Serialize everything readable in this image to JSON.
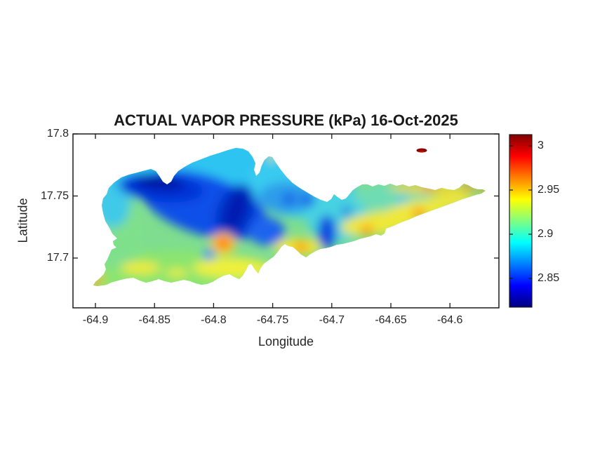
{
  "figure": {
    "title": "ACTUAL VAPOR PRESSURE (kPa) 16-Oct-2025",
    "xlabel": "Longitude",
    "ylabel": "Latitude",
    "background": "#ffffff"
  },
  "chart_data": {
    "type": "heatmap",
    "subtype": "filled-contour island map with colorbar (MATLAB style)",
    "title": "ACTUAL VAPOR PRESSURE (kPa) 16-Oct-2025",
    "xlabel": "Longitude",
    "ylabel": "Latitude",
    "x_tick_values": [
      -64.9,
      -64.85,
      -64.8,
      -64.75,
      -64.7,
      -64.65,
      -64.6
    ],
    "x_tick_labels": [
      "-64.9",
      "-64.85",
      "-64.8",
      "-64.75",
      "-64.7",
      "-64.65",
      "-64.6"
    ],
    "y_tick_values": [
      17.7,
      17.75,
      17.8
    ],
    "y_tick_labels": [
      "17.7",
      "17.75",
      "17.8"
    ],
    "xlim": [
      -64.919,
      -64.558
    ],
    "ylim": [
      17.66,
      17.8
    ],
    "grid": false,
    "colormap": "jet",
    "colorbar": {
      "position": "right",
      "tick_values": [
        2.85,
        2.9,
        2.95,
        3
      ],
      "tick_labels": [
        "2.85",
        "2.9",
        "2.95",
        "3"
      ],
      "clim": [
        2.817,
        3.013
      ],
      "units": "kPa"
    },
    "observed_value_range_kPa": [
      2.84,
      3.01
    ],
    "features": [
      {
        "label": "dark-blue low band (north-west)",
        "lon": -64.845,
        "lat": 17.76,
        "value_kPa": 2.84
      },
      {
        "label": "dark-blue low band (center)",
        "lon": -64.781,
        "lat": 17.738,
        "value_kPa": 2.84
      },
      {
        "label": "blue spot mid-north",
        "lon": -64.736,
        "lat": 17.747,
        "value_kPa": 2.86
      },
      {
        "label": "blue spot mid-north 2",
        "lon": -64.72,
        "lat": 17.746,
        "value_kPa": 2.86
      },
      {
        "label": "dark-blue streak mid-south",
        "lon": -64.704,
        "lat": 17.721,
        "value_kPa": 2.85
      },
      {
        "label": "blue spot south-center",
        "lon": -64.804,
        "lat": 17.703,
        "value_kPa": 2.87
      },
      {
        "label": "orange hotspot south-center",
        "lon": -64.792,
        "lat": 17.712,
        "value_kPa": 2.96
      },
      {
        "label": "orange spot south coast",
        "lon": -64.726,
        "lat": 17.709,
        "value_kPa": 2.95
      },
      {
        "label": "orange spot east-south",
        "lon": -64.67,
        "lat": 17.723,
        "value_kPa": 2.95
      },
      {
        "label": "orange spot east-center",
        "lon": -64.626,
        "lat": 17.736,
        "value_kPa": 2.95
      },
      {
        "label": "orange spot east north coast",
        "lon": -64.617,
        "lat": 17.757,
        "value_kPa": 2.96
      },
      {
        "label": "orange spot near east tip",
        "lon": -64.584,
        "lat": 17.757,
        "value_kPa": 2.96
      },
      {
        "label": "east tip",
        "lon": -64.571,
        "lat": 17.755,
        "value_kPa": 2.95
      },
      {
        "label": "south-west tip streak",
        "lon": -64.902,
        "lat": 17.68,
        "value_kPa": 2.95
      },
      {
        "label": "small offshore islet (dark red, max)",
        "lon": -64.624,
        "lat": 17.786,
        "value_kPa": 3.01
      },
      {
        "label": "cyan background north",
        "lon": -64.803,
        "lat": 17.772,
        "value_kPa": 2.88
      },
      {
        "label": "green background south-west",
        "lon": -64.832,
        "lat": 17.69,
        "value_kPa": 2.9
      },
      {
        "label": "yellow band east",
        "lon": -64.648,
        "lat": 17.73,
        "value_kPa": 2.93
      }
    ]
  },
  "colors": {
    "axis_line": "#1a1a1a",
    "tick_text": "#262626",
    "title_text": "#1a1a1a",
    "jet_stops_bottom_to_top": [
      "#000080",
      "#0000FF",
      "#0080FF",
      "#00FFFF",
      "#80FF80",
      "#FFFF00",
      "#FF8000",
      "#FF0000",
      "#800000"
    ]
  }
}
